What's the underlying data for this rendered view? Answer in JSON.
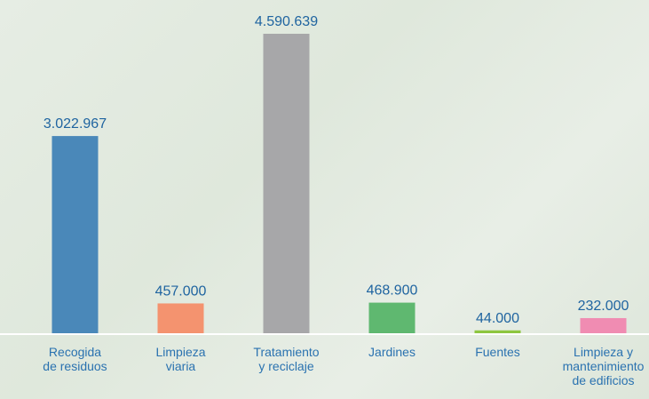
{
  "chart_data": {
    "type": "bar",
    "categories": [
      "Recogida\nde residuos",
      "Limpieza\nviaria",
      "Tratamiento\ny reciclaje",
      "Jardines",
      "Fuentes",
      "Limpieza y\nmantenimiento\nde edificios"
    ],
    "values": [
      3022967,
      457000,
      4590639,
      468900,
      44000,
      232000
    ],
    "value_labels": [
      "3.022.967",
      "457.000",
      "4.590.639",
      "468.900",
      "44.000",
      "232.000"
    ],
    "colors": [
      "#4a88b9",
      "#f4936f",
      "#a7a7a9",
      "#5fb870",
      "#8dc63f",
      "#f08cb2"
    ]
  }
}
